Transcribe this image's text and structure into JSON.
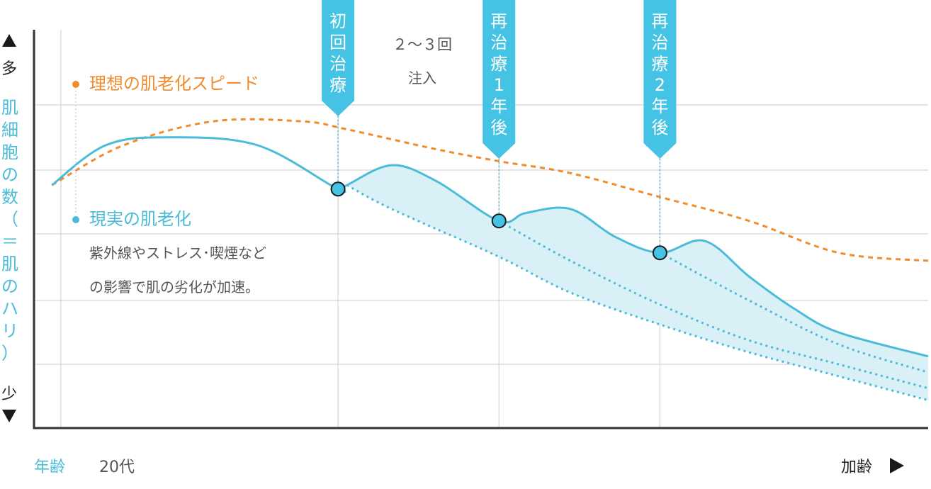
{
  "y_axis": {
    "top_label": "多",
    "bottom_label": "少",
    "title_chars": [
      "肌",
      "細",
      "胞",
      "の",
      "数",
      "（",
      "＝",
      "肌",
      "の",
      "ハ",
      "リ",
      "）"
    ]
  },
  "x_axis": {
    "label": "年齢",
    "start_label": "20代",
    "end_label": "加齢"
  },
  "legend": [
    {
      "label": "理想の肌老化スピード",
      "color": "#f08c2e"
    },
    {
      "label": "現実の肌老化",
      "color": "#4bbcd8"
    }
  ],
  "annotation": {
    "lines": [
      "紫外線やストレス･喫煙など",
      "の影響で肌の劣化が加速。"
    ]
  },
  "injection_note": {
    "line1": "２～３回",
    "line2": "注入"
  },
  "markers": [
    {
      "chars": [
        "初",
        "回",
        "治",
        "療"
      ]
    },
    {
      "chars": [
        "再",
        "治",
        "療",
        "1",
        "年",
        "後"
      ]
    },
    {
      "chars": [
        "再",
        "治",
        "療",
        "2",
        "年",
        "後"
      ]
    }
  ],
  "colors": {
    "ideal": "#f08c2e",
    "real": "#4bbcd8",
    "fill": "#d9f0f7",
    "marker_bg": "#45c3e4",
    "axis": "#333333",
    "grid": "#d5d5d5",
    "text": "#555555"
  },
  "chart_data": {
    "type": "line",
    "xlim": [
      0,
      100
    ],
    "ylim": [
      0,
      100
    ],
    "grid": true,
    "series": [
      {
        "name": "理想の肌老化スピード",
        "style": "dashed",
        "x": [
          2,
          10,
          20,
          30,
          35,
          45,
          52,
          60,
          70,
          80,
          90,
          100
        ],
        "y": [
          61,
          71,
          77,
          77,
          75,
          70,
          67,
          64,
          58,
          52,
          44,
          42
        ]
      },
      {
        "name": "現実の肌老化",
        "style": "solid",
        "x": [
          2,
          8,
          15,
          25,
          34,
          35,
          40,
          45,
          52,
          55,
          60,
          65,
          70,
          75,
          80,
          85,
          90,
          100
        ],
        "y": [
          61,
          71,
          73,
          71,
          60,
          61,
          66,
          62,
          52,
          54,
          55,
          48,
          44,
          47,
          38,
          30,
          24,
          18
        ]
      },
      {
        "name": "",
        "style": "dotted",
        "x": [
          35,
          40,
          52,
          60,
          70,
          80,
          90,
          100
        ],
        "y": [
          61,
          55,
          43,
          34,
          26,
          19,
          13,
          7
        ]
      },
      {
        "name": "",
        "style": "dotted",
        "x": [
          52,
          60,
          70,
          80,
          90,
          100
        ],
        "y": [
          52,
          42,
          31,
          22,
          16,
          10
        ]
      },
      {
        "name": "",
        "style": "dotted",
        "x": [
          70,
          80,
          90,
          100
        ],
        "y": [
          44,
          32,
          21,
          14
        ]
      }
    ],
    "treatment_points": [
      {
        "x": 34,
        "y": 60
      },
      {
        "x": 52,
        "y": 52
      },
      {
        "x": 70,
        "y": 44
      }
    ]
  }
}
